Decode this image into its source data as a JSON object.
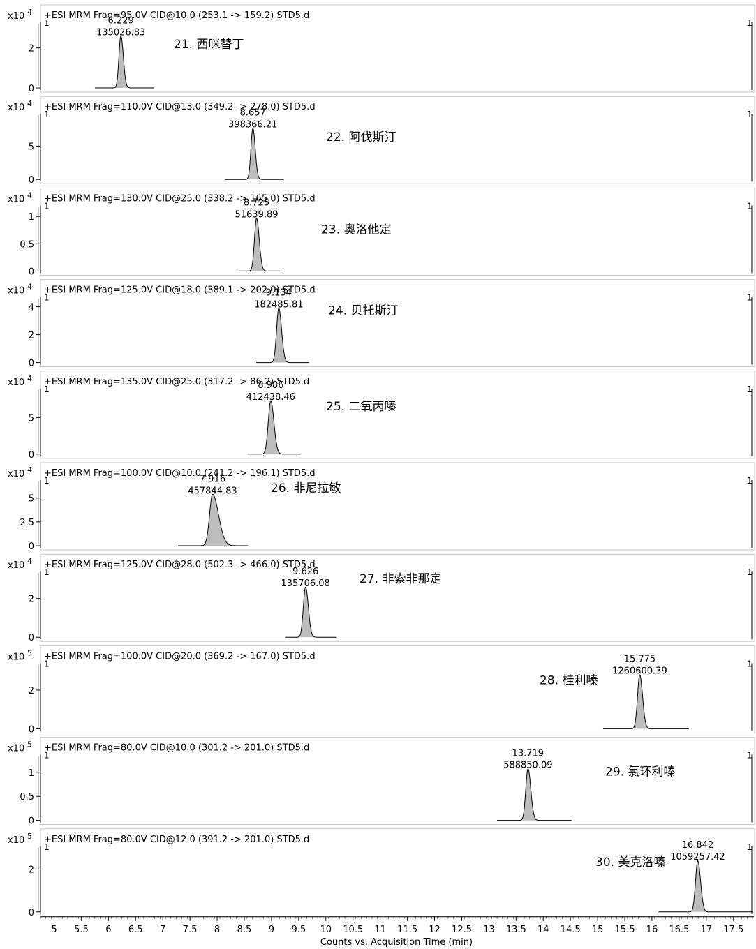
{
  "chart_data": {
    "type": "line",
    "xlabel": "Counts vs. Acquisition Time (min)",
    "xlim": [
      4.75,
      17.85
    ],
    "xticks": [
      "5",
      "5.5",
      "6",
      "6.5",
      "7",
      "7.5",
      "8",
      "8.5",
      "9",
      "9.5",
      "10",
      "10.5",
      "11",
      "11.5",
      "12",
      "12.5",
      "13",
      "13.5",
      "14",
      "14.5",
      "15",
      "15.5",
      "16",
      "16.5",
      "17",
      "17.5"
    ],
    "edge_marker": "1",
    "panels": [
      {
        "header": "+ESI MRM Frag=95.0V CID@10.0 (253.1 -> 159.2) STD5.d",
        "scale": "x10 4",
        "ylim": [
          0,
          3
        ],
        "yticks": [
          {
            "v": 0,
            "t": "0"
          },
          {
            "v": 2,
            "t": "2"
          }
        ],
        "peak": {
          "rt": "6.229",
          "area": "135026.83",
          "x": 6.229,
          "height": 2.6,
          "sigma": 0.035,
          "tail": 1.3,
          "base_start": 5.75,
          "base_end": 6.84
        },
        "compound": "21. 西咪替丁"
      },
      {
        "header": "+ESI MRM Frag=110.0V CID@13.0 (349.2 -> 278.0) STD5.d",
        "scale": "x10 4",
        "ylim": [
          0,
          9
        ],
        "yticks": [
          {
            "v": 0,
            "t": "0"
          },
          {
            "v": 5,
            "t": "5"
          }
        ],
        "peak": {
          "rt": "8.657",
          "area": "398366.21",
          "x": 8.657,
          "height": 7.7,
          "sigma": 0.035,
          "tail": 1.25,
          "base_start": 8.14,
          "base_end": 9.23
        },
        "compound": "22. 阿伐斯汀"
      },
      {
        "header": "+ESI MRM Frag=130.0V CID@25.0 (338.2 -> 165.0) STD5.d",
        "scale": "x10 4",
        "ylim": [
          0,
          1.1
        ],
        "yticks": [
          {
            "v": 0,
            "t": "0"
          },
          {
            "v": 0.5,
            "t": "0.5"
          },
          {
            "v": 1,
            "t": "1"
          }
        ],
        "peak": {
          "rt": "8.725",
          "area": "51639.89",
          "x": 8.725,
          "height": 0.97,
          "sigma": 0.038,
          "tail": 1.3,
          "base_start": 8.35,
          "base_end": 9.22
        },
        "compound": "23. 奥洛他定"
      },
      {
        "header": "+ESI MRM Frag=125.0V CID@18.0 (389.1 -> 202.0) STD5.d",
        "scale": "x10 4",
        "ylim": [
          0,
          4.3
        ],
        "yticks": [
          {
            "v": 0,
            "t": "0"
          },
          {
            "v": 2,
            "t": "2"
          },
          {
            "v": 4,
            "t": "4"
          }
        ],
        "peak": {
          "rt": "9.134",
          "area": "182485.81",
          "x": 9.134,
          "height": 3.9,
          "sigma": 0.04,
          "tail": 1.3,
          "base_start": 8.72,
          "base_end": 9.69
        },
        "compound": "24. 贝托斯汀"
      },
      {
        "header": "+ESI MRM Frag=135.0V CID@25.0 (317.2 -> 86.2) STD5.d",
        "scale": "x10 4",
        "ylim": [
          0,
          8.2
        ],
        "yticks": [
          {
            "v": 0,
            "t": "0"
          },
          {
            "v": 5,
            "t": "5"
          }
        ],
        "peak": {
          "rt": "8.986",
          "area": "412438.46",
          "x": 8.986,
          "height": 7.3,
          "sigma": 0.045,
          "tail": 1.3,
          "base_start": 8.56,
          "base_end": 9.53
        },
        "compound": "25. 二氧丙嗪"
      },
      {
        "header": "+ESI MRM Frag=100.0V CID@10.0 (241.2 -> 196.1) STD5.d",
        "scale": "x10 4",
        "ylim": [
          0,
          6.3
        ],
        "yticks": [
          {
            "v": 0,
            "t": "0"
          },
          {
            "v": 2.5,
            "t": "2.5"
          },
          {
            "v": 5,
            "t": "5"
          }
        ],
        "peak": {
          "rt": "7.916",
          "area": "457844.83",
          "x": 7.916,
          "height": 5.4,
          "sigma": 0.055,
          "tail": 2.0,
          "base_start": 7.28,
          "base_end": 8.57
        },
        "compound": "26. 非尼拉敏"
      },
      {
        "header": "+ESI MRM Frag=125.0V CID@28.0 (502.3 -> 466.0) STD5.d",
        "scale": "x10 4",
        "ylim": [
          0,
          3.1
        ],
        "yticks": [
          {
            "v": 0,
            "t": "0"
          },
          {
            "v": 2,
            "t": "2"
          }
        ],
        "peak": {
          "rt": "9.626",
          "area": "135706.08",
          "x": 9.626,
          "height": 2.6,
          "sigma": 0.04,
          "tail": 1.3,
          "base_start": 9.25,
          "base_end": 10.2
        },
        "compound": "27. 非索非那定"
      },
      {
        "header": "+ESI MRM Frag=100.0V CID@20.0 (369.2 -> 167.0) STD5.d",
        "scale": "x10 5",
        "ylim": [
          0,
          3.1
        ],
        "yticks": [
          {
            "v": 0,
            "t": "0"
          },
          {
            "v": 2,
            "t": "2"
          }
        ],
        "peak": {
          "rt": "15.775",
          "area": "1260600.39",
          "x": 15.775,
          "height": 2.8,
          "sigma": 0.04,
          "tail": 1.3,
          "base_start": 15.1,
          "base_end": 16.68
        },
        "compound": "28. 桂利嗪"
      },
      {
        "header": "+ESI MRM Frag=80.0V CID@10.0 (301.2 -> 201.0) STD5.d",
        "scale": "x10 5",
        "ylim": [
          0,
          1.25
        ],
        "yticks": [
          {
            "v": 0,
            "t": "0"
          },
          {
            "v": 0.5,
            "t": "0.5"
          },
          {
            "v": 1,
            "t": "1"
          }
        ],
        "peak": {
          "rt": "13.719",
          "area": "588850.09",
          "x": 13.719,
          "height": 1.08,
          "sigma": 0.04,
          "tail": 1.3,
          "base_start": 13.15,
          "base_end": 14.52
        },
        "compound": "29. 氯环利嗪"
      },
      {
        "header": "+ESI MRM Frag=80.0V CID@12.0 (391.2 -> 201.0) STD5.d",
        "scale": "x10 5",
        "ylim": [
          0,
          2.8
        ],
        "yticks": [
          {
            "v": 0,
            "t": "0"
          },
          {
            "v": 2,
            "t": "2"
          }
        ],
        "peak": {
          "rt": "16.842",
          "area": "1059257.42",
          "x": 16.842,
          "height": 2.4,
          "sigma": 0.04,
          "tail": 1.3,
          "base_start": 16.12,
          "base_end": 17.85
        },
        "compound": "30. 美克洛嗪"
      }
    ]
  }
}
